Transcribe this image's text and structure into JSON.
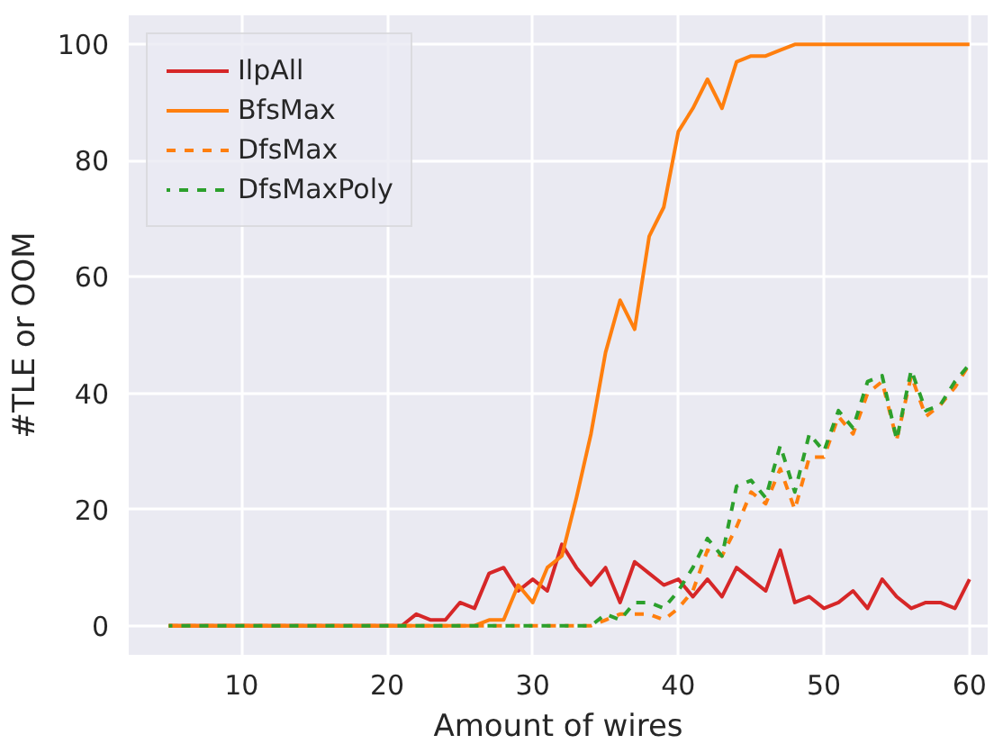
{
  "chart_data": {
    "type": "line",
    "xlabel": "Amount of wires",
    "ylabel": "#TLE or OOM",
    "x": [
      5,
      6,
      7,
      8,
      9,
      10,
      11,
      12,
      13,
      14,
      15,
      16,
      17,
      18,
      19,
      20,
      21,
      22,
      23,
      24,
      25,
      26,
      27,
      28,
      29,
      30,
      31,
      32,
      33,
      34,
      35,
      36,
      37,
      38,
      39,
      40,
      41,
      42,
      43,
      44,
      45,
      46,
      47,
      48,
      49,
      50,
      51,
      52,
      53,
      54,
      55,
      56,
      57,
      58,
      59,
      60
    ],
    "series": [
      {
        "name": "IlpAll",
        "color": "#d62728",
        "line_style": "solid",
        "values": [
          0,
          0,
          0,
          0,
          0,
          0,
          0,
          0,
          0,
          0,
          0,
          0,
          0,
          0,
          0,
          0,
          0,
          2,
          1,
          1,
          4,
          3,
          9,
          10,
          6,
          8,
          6,
          14,
          10,
          7,
          10,
          4,
          11,
          9,
          7,
          8,
          5,
          8,
          5,
          10,
          8,
          6,
          13,
          4,
          5,
          3,
          4,
          6,
          3,
          8,
          5,
          3,
          4,
          4,
          3,
          8
        ]
      },
      {
        "name": "BfsMax",
        "color": "#ff7f0e",
        "line_style": "solid",
        "values": [
          0,
          0,
          0,
          0,
          0,
          0,
          0,
          0,
          0,
          0,
          0,
          0,
          0,
          0,
          0,
          0,
          0,
          0,
          0,
          0,
          0,
          0,
          1,
          1,
          7,
          4,
          10,
          12,
          22,
          33,
          47,
          56,
          51,
          67,
          72,
          85,
          89,
          94,
          89,
          97,
          98,
          98,
          99,
          100,
          100,
          100,
          100,
          100,
          100,
          100,
          100,
          100,
          100,
          100,
          100,
          100
        ]
      },
      {
        "name": "DfsMax",
        "color": "#ff7f0e",
        "line_style": "dashed",
        "values": [
          0,
          0,
          0,
          0,
          0,
          0,
          0,
          0,
          0,
          0,
          0,
          0,
          0,
          0,
          0,
          0,
          0,
          0,
          0,
          0,
          0,
          0,
          0,
          0,
          0,
          0,
          0,
          0,
          0,
          0,
          1,
          2,
          2,
          2,
          1,
          3,
          6,
          13,
          12,
          17,
          23,
          21,
          27,
          20,
          29,
          29,
          36,
          33,
          40,
          42,
          32,
          43,
          36,
          38,
          41,
          45
        ]
      },
      {
        "name": "DfsMaxPoly",
        "color": "#2ca02c",
        "line_style": "dashed",
        "values": [
          0,
          0,
          0,
          0,
          0,
          0,
          0,
          0,
          0,
          0,
          0,
          0,
          0,
          0,
          0,
          0,
          0,
          0,
          0,
          0,
          0,
          0,
          0,
          0,
          0,
          0,
          0,
          0,
          0,
          0,
          2,
          1,
          4,
          4,
          3,
          6,
          10,
          15,
          12,
          24,
          25,
          22,
          31,
          23,
          33,
          30,
          37,
          34,
          42,
          43,
          32,
          44,
          37,
          38,
          42,
          45
        ]
      }
    ],
    "xlim": [
      2.25,
      61.25
    ],
    "ylim": [
      -5,
      105
    ],
    "xticks": [
      10,
      20,
      30,
      40,
      50,
      60
    ],
    "yticks": [
      0,
      20,
      40,
      60,
      80,
      100
    ],
    "grid": true,
    "legend": "top left"
  }
}
